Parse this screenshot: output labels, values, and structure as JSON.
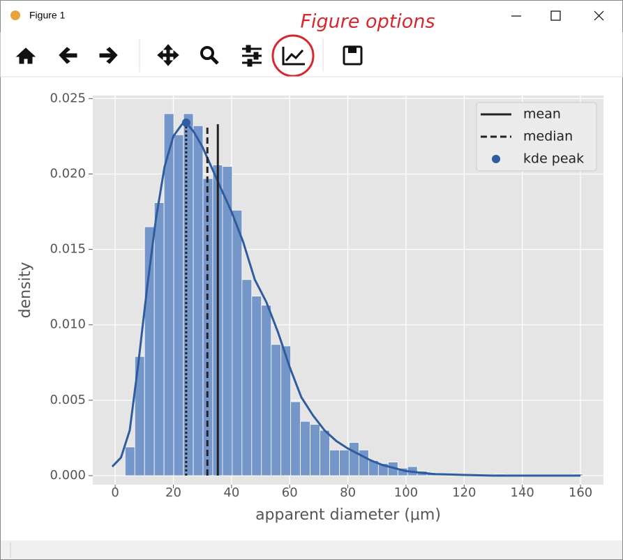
{
  "window": {
    "title": "Figure 1"
  },
  "annotation": {
    "text": "Figure options"
  },
  "chart_data": {
    "type": "histogram",
    "xlabel": "apparent diameter (μm)",
    "ylabel": "density",
    "bins": [
      3.4,
      6.75,
      10.1,
      13.45,
      16.8,
      20.15,
      23.5,
      26.85,
      30.2,
      33.55,
      36.9,
      40.25,
      43.6,
      46.95,
      50.3,
      53.65,
      57.0,
      60.35,
      63.7,
      67.05,
      70.4,
      73.75,
      77.1,
      80.45,
      83.8,
      87.15,
      90.5,
      93.85,
      97.2,
      100.55,
      103.9,
      107.25,
      110.6,
      113.95,
      117.3,
      120.65,
      124.0,
      127.35,
      130.7,
      134.05,
      137.4,
      140.75,
      144.1,
      147.45,
      150.8,
      154.15,
      157.5,
      160.85
    ],
    "values": [
      0.0019,
      0.0079,
      0.0165,
      0.0181,
      0.024,
      0.0226,
      0.024,
      0.0232,
      0.0197,
      0.0206,
      0.0205,
      0.0176,
      0.013,
      0.0119,
      0.0113,
      0.0087,
      0.0086,
      0.0049,
      0.0036,
      0.0034,
      0.003,
      0.0017,
      0.0017,
      0.0022,
      0.0017,
      0.001,
      0.0008,
      0.0009,
      0.0005,
      0.0006,
      0.0003,
      0.0002,
      0.0001,
      0.0001,
      0,
      0,
      0,
      0,
      0.0001,
      0,
      0,
      0,
      0,
      0,
      0,
      0,
      0.0001
    ],
    "color": "#7596c9",
    "kde": {
      "x": [
        -1,
        2,
        5,
        8,
        11,
        14,
        17,
        20,
        23,
        24.4,
        27,
        30,
        33,
        36,
        40,
        44,
        48,
        52,
        56,
        60,
        64,
        68,
        72,
        76,
        80,
        84,
        88,
        92,
        96,
        100,
        105,
        110,
        120,
        130,
        145,
        160
      ],
      "values": [
        0.0006,
        0.0012,
        0.003,
        0.0075,
        0.0125,
        0.017,
        0.0205,
        0.0225,
        0.0233,
        0.0234,
        0.0228,
        0.0218,
        0.0205,
        0.0192,
        0.0175,
        0.0155,
        0.013,
        0.0115,
        0.0095,
        0.0072,
        0.0052,
        0.004,
        0.003,
        0.0023,
        0.0018,
        0.0014,
        0.001,
        0.0007,
        0.0005,
        0.0003,
        0.0002,
        0.0001,
        5e-05,
        0,
        0,
        0
      ],
      "color": "#2f5c9f"
    },
    "lines": [
      {
        "name": "mean",
        "x": 35.3,
        "ymax": 0.0233,
        "style": "solid",
        "color": "#222222"
      },
      {
        "name": "median",
        "x": 31.7,
        "ymax": 0.0233,
        "style": "dashed",
        "color": "#222222"
      }
    ],
    "peak": {
      "name": "kde peak",
      "x": 24.4,
      "y": 0.0234,
      "style": "dotted",
      "color": "#2f5c9f",
      "line_color": "#222222"
    },
    "xlim": [
      -7.7,
      167.9
    ],
    "ylim": [
      -0.0006,
      0.0252
    ],
    "xticks": [
      0,
      20,
      40,
      60,
      80,
      100,
      120,
      140,
      160
    ],
    "yticks": [
      {
        "value": 0,
        "label": "0.000"
      },
      {
        "value": 0.005,
        "label": "0.005"
      },
      {
        "value": 0.01,
        "label": "0.010"
      },
      {
        "value": 0.015,
        "label": "0.015"
      },
      {
        "value": 0.02,
        "label": "0.020"
      },
      {
        "value": 0.025,
        "label": "0.025"
      }
    ],
    "grid": true,
    "legend": "upper right"
  }
}
